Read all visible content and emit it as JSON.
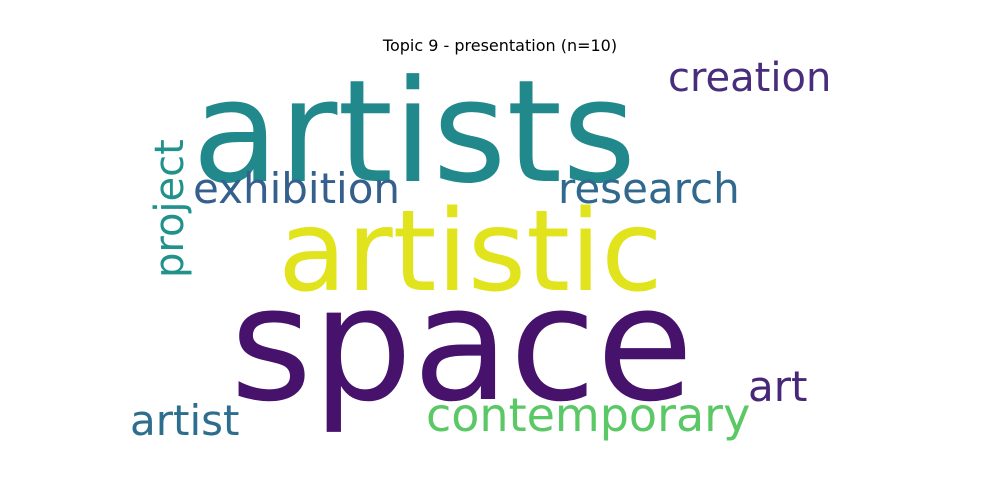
{
  "title": "Topic 9 - presentation (n=10)",
  "words": {
    "artists": {
      "text": "artists",
      "color": "#21898c"
    },
    "creation": {
      "text": "creation",
      "color": "#472d7b"
    },
    "exhibition": {
      "text": "exhibition",
      "color": "#355f8d"
    },
    "research": {
      "text": "research",
      "color": "#31688e"
    },
    "artistic": {
      "text": "artistic",
      "color": "#e1e41c"
    },
    "space": {
      "text": "space",
      "color": "#46126b"
    },
    "art": {
      "text": "art",
      "color": "#472777"
    },
    "contemporary": {
      "text": "contemporary",
      "color": "#5ac864"
    },
    "artist": {
      "text": "artist",
      "color": "#2d6e8e"
    },
    "project": {
      "text": "project",
      "color": "#21918c"
    }
  }
}
